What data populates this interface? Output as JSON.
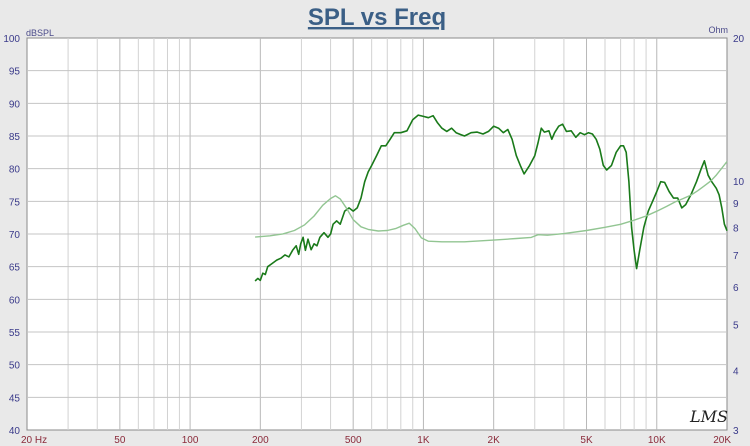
{
  "chart_data": {
    "type": "line",
    "title": "SPL vs Freq",
    "left_unit": "dBSPL",
    "right_unit": "Ohm",
    "logo": "LMS",
    "x_scale": "log",
    "xlim": [
      20,
      20000
    ],
    "ylim_left": [
      40,
      100
    ],
    "ylim_right": [
      3,
      20
    ],
    "grid": true,
    "x_ticks": [
      {
        "value": 20,
        "label": "20  Hz"
      },
      {
        "value": 50,
        "label": "50"
      },
      {
        "value": 100,
        "label": "100"
      },
      {
        "value": 200,
        "label": "200"
      },
      {
        "value": 500,
        "label": "500"
      },
      {
        "value": 1000,
        "label": "1K"
      },
      {
        "value": 2000,
        "label": "2K"
      },
      {
        "value": 5000,
        "label": "5K"
      },
      {
        "value": 10000,
        "label": "10K"
      },
      {
        "value": 20000,
        "label": "20K"
      }
    ],
    "y_ticks_left": [
      {
        "value": 40,
        "label": "40"
      },
      {
        "value": 45,
        "label": "45"
      },
      {
        "value": 50,
        "label": "50"
      },
      {
        "value": 55,
        "label": "55"
      },
      {
        "value": 60,
        "label": "60"
      },
      {
        "value": 65,
        "label": "65"
      },
      {
        "value": 70,
        "label": "70"
      },
      {
        "value": 75,
        "label": "75"
      },
      {
        "value": 80,
        "label": "80"
      },
      {
        "value": 85,
        "label": "85"
      },
      {
        "value": 90,
        "label": "90"
      },
      {
        "value": 95,
        "label": "95"
      },
      {
        "value": 100,
        "label": "100"
      }
    ],
    "y_ticks_right": [
      {
        "value": 3,
        "label": "3"
      },
      {
        "value": 4,
        "label": "4"
      },
      {
        "value": 5,
        "label": "5"
      },
      {
        "value": 6,
        "label": "6"
      },
      {
        "value": 7,
        "label": "7"
      },
      {
        "value": 8,
        "label": "8"
      },
      {
        "value": 9,
        "label": "9"
      },
      {
        "value": 10,
        "label": "10"
      },
      {
        "value": 20,
        "label": "20"
      }
    ],
    "series": [
      {
        "color": "#1a7a1a",
        "axis": "left",
        "points": [
          [
            190,
            62.8
          ],
          [
            195,
            63.2
          ],
          [
            200,
            62.9
          ],
          [
            205,
            64
          ],
          [
            210,
            63.8
          ],
          [
            215,
            65
          ],
          [
            225,
            65.5
          ],
          [
            235,
            66
          ],
          [
            245,
            66.3
          ],
          [
            255,
            66.8
          ],
          [
            265,
            66.5
          ],
          [
            275,
            67.5
          ],
          [
            285,
            68.2
          ],
          [
            292,
            66.9
          ],
          [
            298,
            68.5
          ],
          [
            305,
            69.5
          ],
          [
            312,
            67.5
          ],
          [
            320,
            69.2
          ],
          [
            330,
            67.6
          ],
          [
            340,
            68.5
          ],
          [
            350,
            68.2
          ],
          [
            360,
            69.5
          ],
          [
            375,
            70.2
          ],
          [
            390,
            69.5
          ],
          [
            400,
            70
          ],
          [
            410,
            71.5
          ],
          [
            425,
            72
          ],
          [
            440,
            71.5
          ],
          [
            460,
            73.5
          ],
          [
            480,
            74
          ],
          [
            500,
            73.5
          ],
          [
            520,
            74
          ],
          [
            540,
            75.5
          ],
          [
            560,
            78
          ],
          [
            580,
            79.5
          ],
          [
            600,
            80.5
          ],
          [
            630,
            82
          ],
          [
            660,
            83.5
          ],
          [
            690,
            83.5
          ],
          [
            720,
            84.5
          ],
          [
            750,
            85.5
          ],
          [
            800,
            85.5
          ],
          [
            850,
            85.8
          ],
          [
            900,
            87.5
          ],
          [
            950,
            88.2
          ],
          [
            1000,
            88
          ],
          [
            1050,
            87.8
          ],
          [
            1100,
            88.1
          ],
          [
            1150,
            87
          ],
          [
            1200,
            86.2
          ],
          [
            1260,
            85.7
          ],
          [
            1320,
            86.2
          ],
          [
            1380,
            85.5
          ],
          [
            1450,
            85.2
          ],
          [
            1500,
            85
          ],
          [
            1600,
            85.5
          ],
          [
            1700,
            85.6
          ],
          [
            1800,
            85.3
          ],
          [
            1900,
            85.7
          ],
          [
            2000,
            86.5
          ],
          [
            2100,
            86.2
          ],
          [
            2200,
            85.5
          ],
          [
            2300,
            86
          ],
          [
            2400,
            84.5
          ],
          [
            2500,
            82
          ],
          [
            2600,
            80.5
          ],
          [
            2700,
            79.2
          ],
          [
            2850,
            80.5
          ],
          [
            3000,
            82
          ],
          [
            3100,
            84
          ],
          [
            3200,
            86.2
          ],
          [
            3300,
            85.6
          ],
          [
            3450,
            85.8
          ],
          [
            3550,
            84.5
          ],
          [
            3650,
            85.5
          ],
          [
            3800,
            86.5
          ],
          [
            3950,
            86.8
          ],
          [
            4100,
            85.7
          ],
          [
            4300,
            85.8
          ],
          [
            4500,
            84.8
          ],
          [
            4700,
            85.5
          ],
          [
            4900,
            85.2
          ],
          [
            5100,
            85.5
          ],
          [
            5300,
            85.3
          ],
          [
            5500,
            84.5
          ],
          [
            5700,
            83
          ],
          [
            5900,
            80.5
          ],
          [
            6100,
            79.8
          ],
          [
            6400,
            80.5
          ],
          [
            6700,
            82.5
          ],
          [
            7000,
            83.5
          ],
          [
            7200,
            83.5
          ],
          [
            7400,
            82.5
          ],
          [
            7600,
            78
          ],
          [
            7800,
            71
          ],
          [
            8000,
            67.5
          ],
          [
            8200,
            64.7
          ],
          [
            8450,
            67.5
          ],
          [
            8800,
            71
          ],
          [
            9200,
            73.5
          ],
          [
            9600,
            75
          ],
          [
            10000,
            76.5
          ],
          [
            10400,
            78
          ],
          [
            10800,
            77.9
          ],
          [
            11300,
            76.5
          ],
          [
            11800,
            75.5
          ],
          [
            12300,
            75.5
          ],
          [
            12800,
            74
          ],
          [
            13300,
            74.5
          ],
          [
            14000,
            76
          ],
          [
            14800,
            78
          ],
          [
            15500,
            80
          ],
          [
            16000,
            81.2
          ],
          [
            16600,
            79
          ],
          [
            17200,
            78
          ],
          [
            18000,
            77
          ],
          [
            18500,
            76
          ],
          [
            19000,
            74
          ],
          [
            19500,
            71.5
          ],
          [
            20000,
            70.5
          ]
        ]
      },
      {
        "color": "#92c592",
        "axis": "right",
        "points": [
          [
            190,
            7.63
          ],
          [
            220,
            7.68
          ],
          [
            250,
            7.75
          ],
          [
            280,
            7.88
          ],
          [
            310,
            8.1
          ],
          [
            340,
            8.45
          ],
          [
            370,
            8.9
          ],
          [
            400,
            9.2
          ],
          [
            420,
            9.32
          ],
          [
            440,
            9.18
          ],
          [
            470,
            8.75
          ],
          [
            500,
            8.3
          ],
          [
            540,
            8.02
          ],
          [
            580,
            7.92
          ],
          [
            640,
            7.86
          ],
          [
            700,
            7.88
          ],
          [
            760,
            7.95
          ],
          [
            820,
            8.08
          ],
          [
            870,
            8.16
          ],
          [
            920,
            7.95
          ],
          [
            980,
            7.6
          ],
          [
            1050,
            7.48
          ],
          [
            1200,
            7.46
          ],
          [
            1500,
            7.46
          ],
          [
            2000,
            7.52
          ],
          [
            2500,
            7.58
          ],
          [
            2900,
            7.62
          ],
          [
            3100,
            7.72
          ],
          [
            3400,
            7.7
          ],
          [
            4000,
            7.76
          ],
          [
            5000,
            7.88
          ],
          [
            6000,
            8.0
          ],
          [
            7000,
            8.12
          ],
          [
            8000,
            8.28
          ],
          [
            9000,
            8.45
          ],
          [
            10000,
            8.65
          ],
          [
            11000,
            8.85
          ],
          [
            12000,
            9.05
          ],
          [
            13000,
            9.2
          ],
          [
            14000,
            9.35
          ],
          [
            15000,
            9.55
          ],
          [
            16000,
            9.78
          ],
          [
            17000,
            10.0
          ],
          [
            18000,
            10.3
          ],
          [
            19000,
            10.65
          ],
          [
            20000,
            11.0
          ]
        ]
      }
    ]
  }
}
